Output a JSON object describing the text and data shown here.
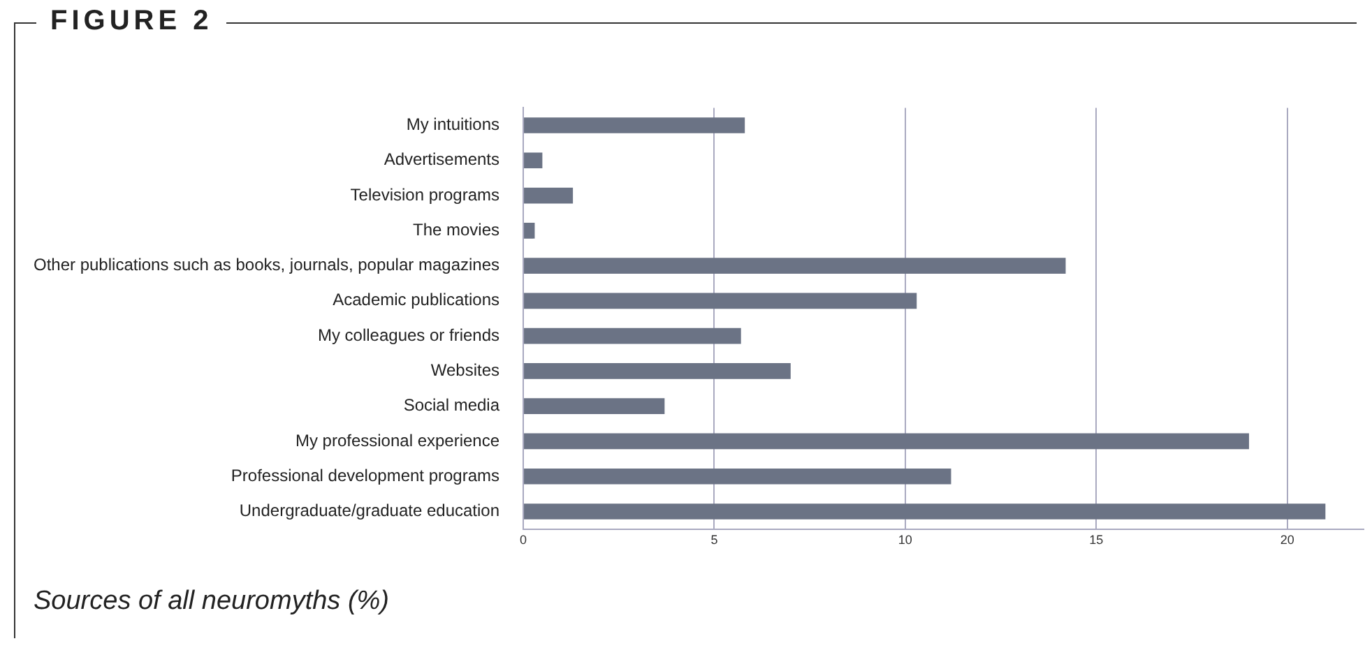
{
  "chart_data": {
    "type": "bar",
    "orientation": "horizontal",
    "title": "FIGURE 2",
    "categories": [
      "My intuitions",
      "Advertisements",
      "Television programs",
      "The movies",
      "Other publications such as books, journals, popular magazines",
      "Academic publications",
      "My colleagues or friends",
      "Websites",
      "Social media",
      "My professional experience",
      "Professional development programs",
      "Undergraduate/graduate education"
    ],
    "values": [
      5.8,
      0.5,
      1.3,
      0.3,
      14.2,
      10.3,
      5.7,
      7.0,
      3.7,
      19.0,
      11.2,
      21.0
    ],
    "color": "#6b7385",
    "xlim": [
      0,
      22
    ],
    "xticks": [
      0,
      5,
      10,
      15,
      20
    ],
    "grid": "x",
    "annotations": [
      "Sources of all neuromyths (%)"
    ]
  }
}
